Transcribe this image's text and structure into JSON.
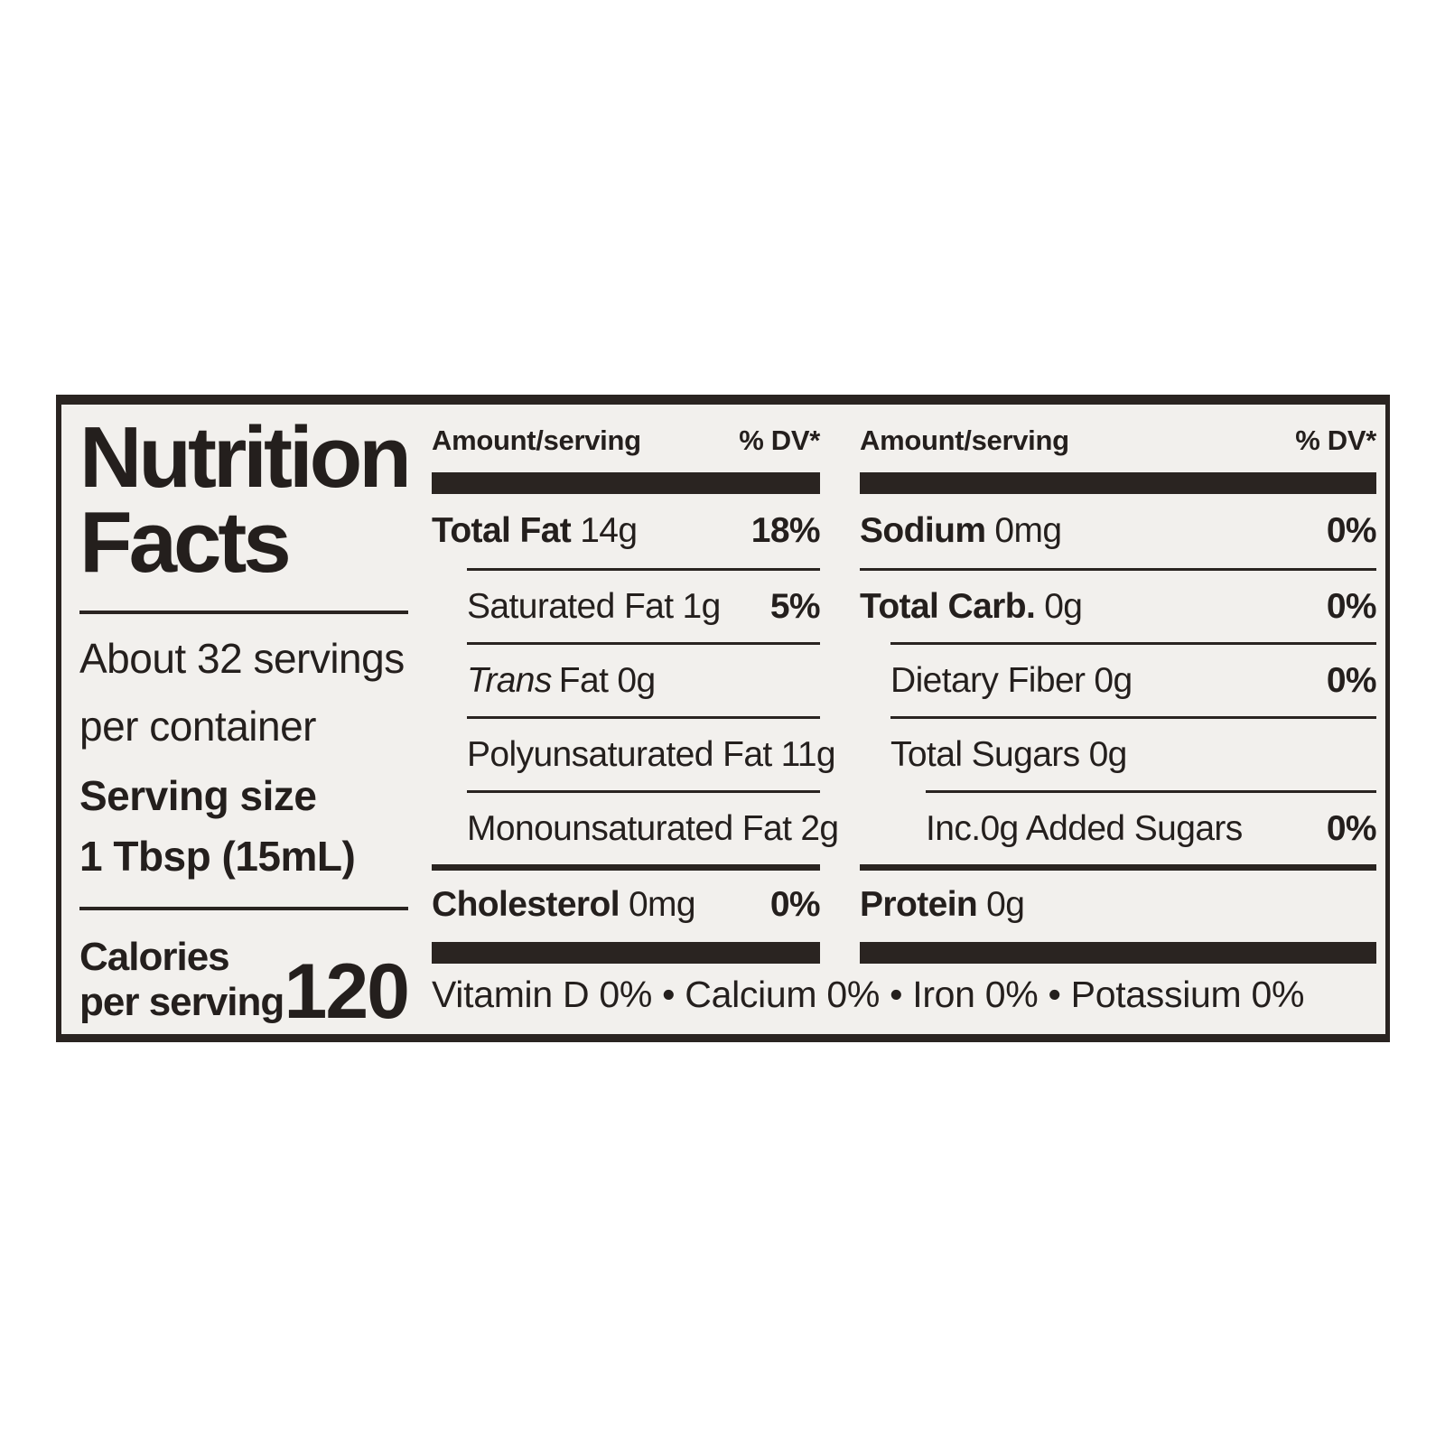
{
  "nutrition_label": {
    "title": {
      "line1": "Nutrition",
      "line2": "Facts"
    },
    "servings_per_container": {
      "line1": "About 32 servings",
      "line2": "per container"
    },
    "serving_size": {
      "label": "Serving size",
      "value": "1 Tbsp (15mL)"
    },
    "calories": {
      "label_line1": "Calories",
      "label_line2": "per serving",
      "value": "120"
    },
    "table_header": {
      "amount": "Amount/serving",
      "dv": "% DV*"
    },
    "left_table_rows": [
      {
        "name": "Total Fat",
        "amount": "14g",
        "dv": "18%"
      },
      {
        "name": "Saturated Fat",
        "amount": "1g",
        "dv": "5%"
      },
      {
        "name_italic": "Trans",
        "name": "Fat",
        "amount": "0g",
        "dv": ""
      },
      {
        "name": "Polyunsaturated Fat",
        "amount": "11g",
        "dv": ""
      },
      {
        "name": "Monounsaturated Fat",
        "amount": "2g",
        "dv": ""
      },
      {
        "name": "Cholesterol",
        "amount": "0mg",
        "dv": "0%"
      }
    ],
    "right_table_rows": [
      {
        "name": "Sodium",
        "amount": "0mg",
        "dv": "0%"
      },
      {
        "name": "Total Carb.",
        "amount": "0g",
        "dv": "0%"
      },
      {
        "name": "Dietary Fiber",
        "amount": "0g",
        "dv": "0%"
      },
      {
        "name": "Total Sugars",
        "amount": "0g",
        "dv": ""
      },
      {
        "name": "Inc.0g Added Sugars",
        "amount": "",
        "dv": "0%"
      },
      {
        "name": "Protein",
        "amount": "0g",
        "dv": ""
      }
    ],
    "micronutrients": "Vitamin D 0% • Calcium 0% • Iron 0% • Potassium 0%",
    "colors": {
      "text": "#241f1d",
      "rule": "#2a2421",
      "label_background": "#f2f0ed",
      "page_background": "#ffffff"
    }
  }
}
